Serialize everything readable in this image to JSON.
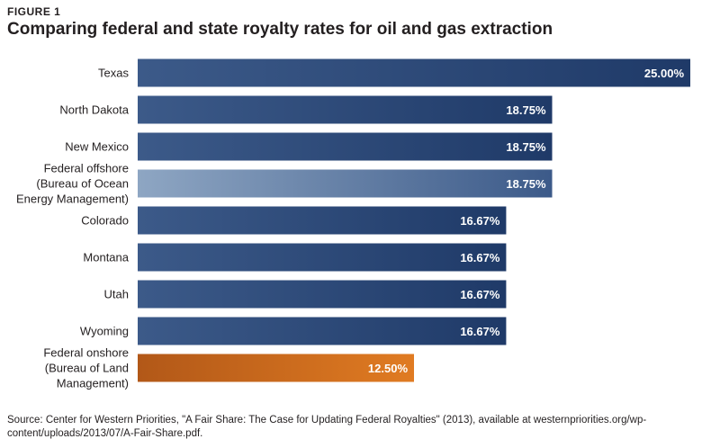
{
  "figure_label": "FIGURE 1",
  "colors": {
    "bar_dark": "#1f3a68",
    "bar_mid": "#3c5a89",
    "bar_light": "#8ea6c3",
    "bar_orange_dark": "#b25818",
    "bar_orange_light": "#e07b22",
    "label_text": "#231f20",
    "value_text": "#ffffff"
  },
  "chart_data": {
    "type": "bar",
    "orientation": "horizontal",
    "title": "Comparing federal and state royalty rates for oil and gas extraction",
    "xlabel": "",
    "ylabel": "",
    "xlim": [
      0,
      25
    ],
    "categories": [
      "Texas",
      "North Dakota",
      "New Mexico",
      "Federal offshore (Bureau of Ocean Energy Management)",
      "Colorado",
      "Montana",
      "Utah",
      "Wyoming",
      "Federal onshore (Bureau of Land Management)"
    ],
    "category_lines": [
      [
        "Texas"
      ],
      [
        "North Dakota"
      ],
      [
        "New Mexico"
      ],
      [
        "Federal offshore",
        "(Bureau of Ocean",
        "Energy Management)"
      ],
      [
        "Colorado"
      ],
      [
        "Montana"
      ],
      [
        "Utah"
      ],
      [
        "Wyoming"
      ],
      [
        "Federal onshore",
        "(Bureau of Land",
        "Management)"
      ]
    ],
    "values": [
      25.0,
      18.75,
      18.75,
      18.75,
      16.67,
      16.67,
      16.67,
      16.67,
      12.5
    ],
    "value_labels": [
      "25.00%",
      "18.75%",
      "18.75%",
      "18.75%",
      "16.67%",
      "16.67%",
      "16.67%",
      "16.67%",
      "12.50%"
    ],
    "bar_styles": [
      "state",
      "state",
      "state",
      "federal-offshore",
      "state",
      "state",
      "state",
      "state",
      "federal-onshore"
    ]
  },
  "source": "Source: Center for Western Priorities, \"A Fair Share: The Case for Updating Federal Royalties\" (2013), available at westernpriorities.org/wp-content/uploads/2013/07/A-Fair-Share.pdf."
}
